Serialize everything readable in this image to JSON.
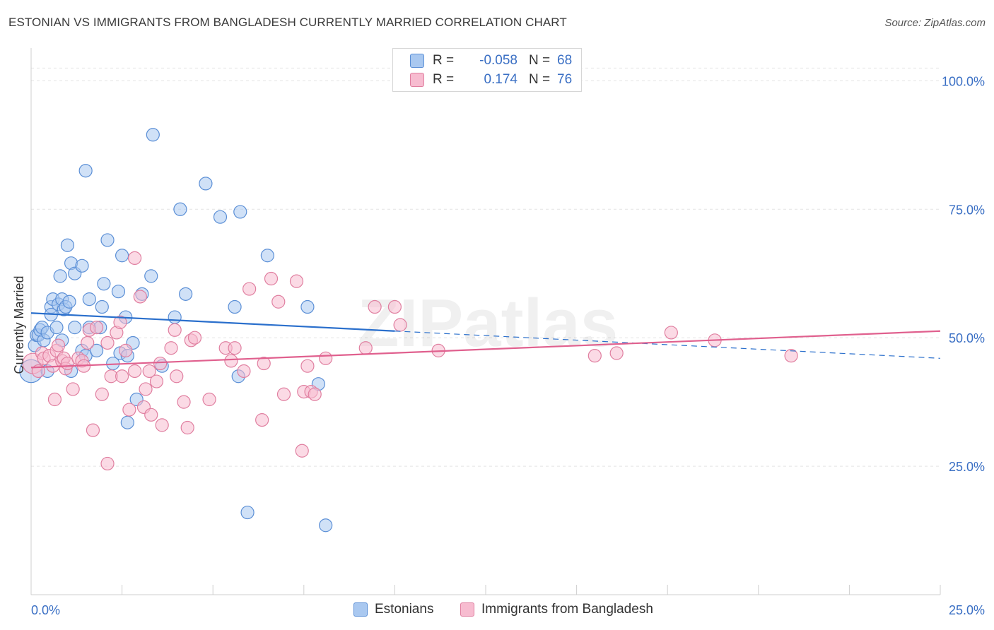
{
  "title": "ESTONIAN VS IMMIGRANTS FROM BANGLADESH CURRENTLY MARRIED CORRELATION CHART",
  "source": "Source: ZipAtlas.com",
  "watermark": "ZIPatlas",
  "stats": {
    "rows": [
      {
        "r_label": "R =",
        "r_value": "-0.058",
        "n_label": "N =",
        "n_value": "68",
        "color": "#a9c8f0",
        "border": "#5b8fd6"
      },
      {
        "r_label": "R =",
        "r_value": "0.174",
        "n_label": "N =",
        "n_value": "76",
        "color": "#f7bcd0",
        "border": "#e07fa0"
      }
    ]
  },
  "legend": [
    {
      "label": "Estonians",
      "color": "#a9c8f0",
      "border": "#5b8fd6"
    },
    {
      "label": "Immigrants from Bangladesh",
      "color": "#f7bcd0",
      "border": "#e07fa0"
    }
  ],
  "chart_data": {
    "type": "scatter",
    "title": "ESTONIAN VS IMMIGRANTS FROM BANGLADESH CURRENTLY MARRIED CORRELATION CHART",
    "xlabel": "",
    "ylabel": "Currently Married",
    "xlim": [
      0,
      25
    ],
    "ylim": [
      0,
      105
    ],
    "x_tick_labels": [
      "0.0%",
      "25.0%"
    ],
    "y_ticks": [
      25,
      50,
      75,
      100
    ],
    "y_tick_labels": [
      "25.0%",
      "50.0%",
      "75.0%",
      "100.0%"
    ],
    "grid": true,
    "series": [
      {
        "name": "Estonians",
        "color": "#5b8fd6",
        "fill": "#a9c8f0",
        "trend": {
          "x0": 0,
          "y0": 54.8,
          "x1": 10,
          "y1": 51.3,
          "dash_x1": 25,
          "dash_y1": 46.0,
          "color": "#2a6fcc"
        },
        "points": [
          [
            0.0,
            43.5,
            1.8
          ],
          [
            0.1,
            48.5,
            1
          ],
          [
            0.15,
            50.5,
            1
          ],
          [
            0.2,
            50.5,
            1
          ],
          [
            0.25,
            51.5,
            1
          ],
          [
            0.3,
            52.0,
            1
          ],
          [
            0.35,
            49.5,
            1
          ],
          [
            0.45,
            51.0,
            1
          ],
          [
            0.45,
            43.5,
            1
          ],
          [
            0.55,
            56.0,
            1
          ],
          [
            0.55,
            54.5,
            1
          ],
          [
            0.6,
            57.5,
            1
          ],
          [
            0.7,
            52.0,
            1
          ],
          [
            0.75,
            56.5,
            1
          ],
          [
            0.8,
            62.0,
            1
          ],
          [
            0.85,
            57.5,
            1
          ],
          [
            0.85,
            49.5,
            1
          ],
          [
            0.9,
            55.5,
            1
          ],
          [
            0.95,
            56.0,
            1
          ],
          [
            1.0,
            68.0,
            1
          ],
          [
            1.05,
            57.0,
            1
          ],
          [
            1.1,
            64.5,
            1
          ],
          [
            1.1,
            43.5,
            1
          ],
          [
            1.2,
            62.5,
            1
          ],
          [
            1.2,
            52.0,
            1
          ],
          [
            1.4,
            64.0,
            1
          ],
          [
            1.4,
            47.5,
            1
          ],
          [
            1.5,
            82.5,
            1
          ],
          [
            1.5,
            46.5,
            1
          ],
          [
            1.6,
            52.0,
            1
          ],
          [
            1.6,
            57.5,
            1
          ],
          [
            1.8,
            47.5,
            1
          ],
          [
            1.9,
            52.0,
            1
          ],
          [
            1.95,
            56.0,
            1
          ],
          [
            2.0,
            60.5,
            1
          ],
          [
            2.1,
            69.0,
            1
          ],
          [
            2.25,
            45.0,
            1
          ],
          [
            2.4,
            59.0,
            1
          ],
          [
            2.45,
            47.0,
            1
          ],
          [
            2.5,
            66.0,
            1
          ],
          [
            2.6,
            54.0,
            1
          ],
          [
            2.65,
            46.5,
            1
          ],
          [
            2.65,
            33.5,
            1
          ],
          [
            2.8,
            49.0,
            1
          ],
          [
            2.9,
            38.0,
            1
          ],
          [
            3.05,
            58.5,
            1
          ],
          [
            3.3,
            62.0,
            1
          ],
          [
            3.35,
            89.5,
            1
          ],
          [
            3.6,
            44.5,
            1
          ],
          [
            3.95,
            54.0,
            1
          ],
          [
            4.1,
            75.0,
            1
          ],
          [
            4.25,
            58.5,
            1
          ],
          [
            4.8,
            80.0,
            1
          ],
          [
            5.2,
            73.5,
            1
          ],
          [
            5.6,
            56.0,
            1
          ],
          [
            5.7,
            42.5,
            1
          ],
          [
            5.75,
            74.5,
            1
          ],
          [
            5.95,
            16.0,
            1
          ],
          [
            6.5,
            66.0,
            1
          ],
          [
            7.6,
            56.0,
            1
          ],
          [
            7.9,
            41.0,
            1
          ],
          [
            8.1,
            13.5,
            1
          ]
        ]
      },
      {
        "name": "Immigrants from Bangladesh",
        "color": "#e07fa0",
        "fill": "#f7bcd0",
        "trend": {
          "x0": 0,
          "y0": 44.2,
          "x1": 25,
          "y1": 51.3,
          "color": "#e0608e"
        },
        "points": [
          [
            0.05,
            45.0,
            1.6
          ],
          [
            0.2,
            43.5,
            1
          ],
          [
            0.3,
            47.0,
            1
          ],
          [
            0.35,
            46.0,
            1
          ],
          [
            0.5,
            46.5,
            1
          ],
          [
            0.6,
            44.5,
            1
          ],
          [
            0.65,
            38.0,
            1
          ],
          [
            0.7,
            47.5,
            1
          ],
          [
            0.75,
            48.5,
            1
          ],
          [
            0.85,
            45.5,
            1
          ],
          [
            0.9,
            46.0,
            1
          ],
          [
            0.95,
            44.0,
            1
          ],
          [
            1.0,
            45.0,
            1
          ],
          [
            1.15,
            40.0,
            1
          ],
          [
            1.3,
            46.0,
            1
          ],
          [
            1.4,
            45.5,
            1
          ],
          [
            1.45,
            44.5,
            1
          ],
          [
            1.55,
            49.0,
            1
          ],
          [
            1.6,
            51.5,
            1
          ],
          [
            1.7,
            32.0,
            1
          ],
          [
            1.8,
            52.0,
            1
          ],
          [
            1.95,
            39.0,
            1
          ],
          [
            2.1,
            49.0,
            1
          ],
          [
            2.1,
            25.5,
            1
          ],
          [
            2.2,
            42.5,
            1
          ],
          [
            2.35,
            51.0,
            1
          ],
          [
            2.45,
            53.0,
            1
          ],
          [
            2.5,
            42.5,
            1
          ],
          [
            2.6,
            47.5,
            1
          ],
          [
            2.7,
            36.0,
            1
          ],
          [
            2.85,
            43.5,
            1
          ],
          [
            2.85,
            65.5,
            1
          ],
          [
            3.0,
            58.0,
            1
          ],
          [
            3.1,
            36.5,
            1
          ],
          [
            3.15,
            40.0,
            1
          ],
          [
            3.25,
            43.5,
            1
          ],
          [
            3.3,
            35.0,
            1
          ],
          [
            3.45,
            41.5,
            1
          ],
          [
            3.55,
            45.0,
            1
          ],
          [
            3.6,
            33.0,
            1
          ],
          [
            3.85,
            48.0,
            1
          ],
          [
            3.95,
            51.5,
            1
          ],
          [
            4.0,
            42.5,
            1
          ],
          [
            4.2,
            37.5,
            1
          ],
          [
            4.3,
            32.5,
            1
          ],
          [
            4.4,
            49.5,
            1
          ],
          [
            4.5,
            50.0,
            1
          ],
          [
            4.9,
            38.0,
            1
          ],
          [
            5.35,
            48.0,
            1
          ],
          [
            5.5,
            45.5,
            1
          ],
          [
            5.6,
            48.0,
            1
          ],
          [
            5.85,
            43.5,
            1
          ],
          [
            6.0,
            59.5,
            1
          ],
          [
            6.35,
            34.0,
            1
          ],
          [
            6.4,
            45.0,
            1
          ],
          [
            6.6,
            61.5,
            1
          ],
          [
            6.8,
            57.0,
            1
          ],
          [
            6.95,
            39.0,
            1
          ],
          [
            7.3,
            61.0,
            1
          ],
          [
            7.45,
            28.0,
            1
          ],
          [
            7.5,
            39.5,
            1
          ],
          [
            7.6,
            44.5,
            1
          ],
          [
            7.7,
            39.5,
            1
          ],
          [
            7.8,
            39.0,
            1
          ],
          [
            8.1,
            46.0,
            1
          ],
          [
            9.2,
            48.0,
            1
          ],
          [
            9.45,
            56.0,
            1
          ],
          [
            10.0,
            56.0,
            1
          ],
          [
            10.15,
            52.5,
            1
          ],
          [
            11.2,
            47.5,
            1
          ],
          [
            15.5,
            46.5,
            1
          ],
          [
            16.1,
            47.0,
            1
          ],
          [
            17.6,
            51.0,
            1
          ],
          [
            18.8,
            49.5,
            1
          ],
          [
            20.9,
            46.5,
            1
          ]
        ]
      }
    ]
  }
}
